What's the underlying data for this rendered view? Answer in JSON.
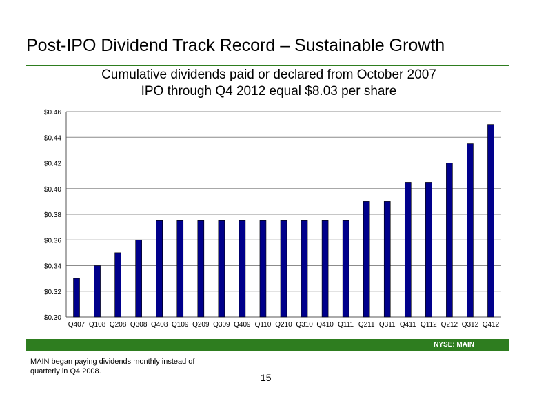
{
  "slide": {
    "title": "Post-IPO Dividend Track Record – Sustainable Growth",
    "subtitle_line1": "Cumulative dividends paid or declared from October 2007",
    "subtitle_line2": "IPO through Q4 2012 equal $8.03 per share",
    "footer_label": "NYSE:  MAIN",
    "note": "MAIN began paying dividends monthly instead of quarterly in Q4 2008.",
    "page_number": "15",
    "accent_color": "#2e7d1f",
    "bar_color": "#00008b"
  },
  "chart_data": {
    "type": "bar",
    "categories": [
      "Q407",
      "Q108",
      "Q208",
      "Q308",
      "Q408",
      "Q109",
      "Q209",
      "Q309",
      "Q409",
      "Q110",
      "Q210",
      "Q310",
      "Q410",
      "Q111",
      "Q211",
      "Q311",
      "Q411",
      "Q112",
      "Q212",
      "Q312",
      "Q412"
    ],
    "values": [
      0.33,
      0.34,
      0.35,
      0.36,
      0.375,
      0.375,
      0.375,
      0.375,
      0.375,
      0.375,
      0.375,
      0.375,
      0.375,
      0.375,
      0.39,
      0.39,
      0.405,
      0.405,
      0.42,
      0.435,
      0.45
    ],
    "ylim": [
      0.3,
      0.46
    ],
    "yticks": [
      0.3,
      0.32,
      0.34,
      0.36,
      0.38,
      0.4,
      0.42,
      0.44,
      0.46
    ],
    "ytick_labels": [
      "$0.30",
      "$0.32",
      "$0.34",
      "$0.36",
      "$0.38",
      "$0.40",
      "$0.42",
      "$0.44",
      "$0.46"
    ],
    "grid": true,
    "legend": "none"
  }
}
